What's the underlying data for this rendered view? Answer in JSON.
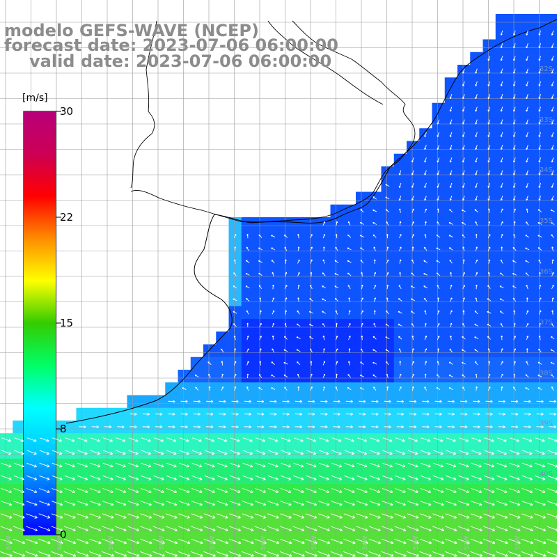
{
  "title": {
    "line1": "modelo GEFS-WAVE (NCEP)",
    "line2": "forecast date: 2023-07-06 06:00:00",
    "line3": "valid date: 2023-07-06 06:00:00"
  },
  "colorbar": {
    "unit": "[m/s]",
    "ticks": [
      "30",
      "22",
      "15",
      "8",
      "0"
    ],
    "colors": [
      "#0000ff",
      "#0066ff",
      "#00ccff",
      "#00ffff",
      "#00ff66",
      "#33cc00",
      "#ffff00",
      "#ff8c00",
      "#ff0000",
      "#cc0055",
      "#b8007a"
    ]
  },
  "map": {
    "latitude_labels": [
      "32S",
      "33S",
      "34S",
      "35S",
      "36S",
      "37S",
      "38S",
      "39S",
      "40S"
    ],
    "longitude_labels": [
      "61W",
      "60W",
      "59W",
      "58W",
      "57W",
      "56W",
      "55W",
      "54W",
      "53W",
      "52W",
      "51W"
    ],
    "land_color": "#ffffff",
    "grid_color": "#b0b0b0",
    "vector_color": "#ffffff",
    "coast_color": "#000000"
  }
}
